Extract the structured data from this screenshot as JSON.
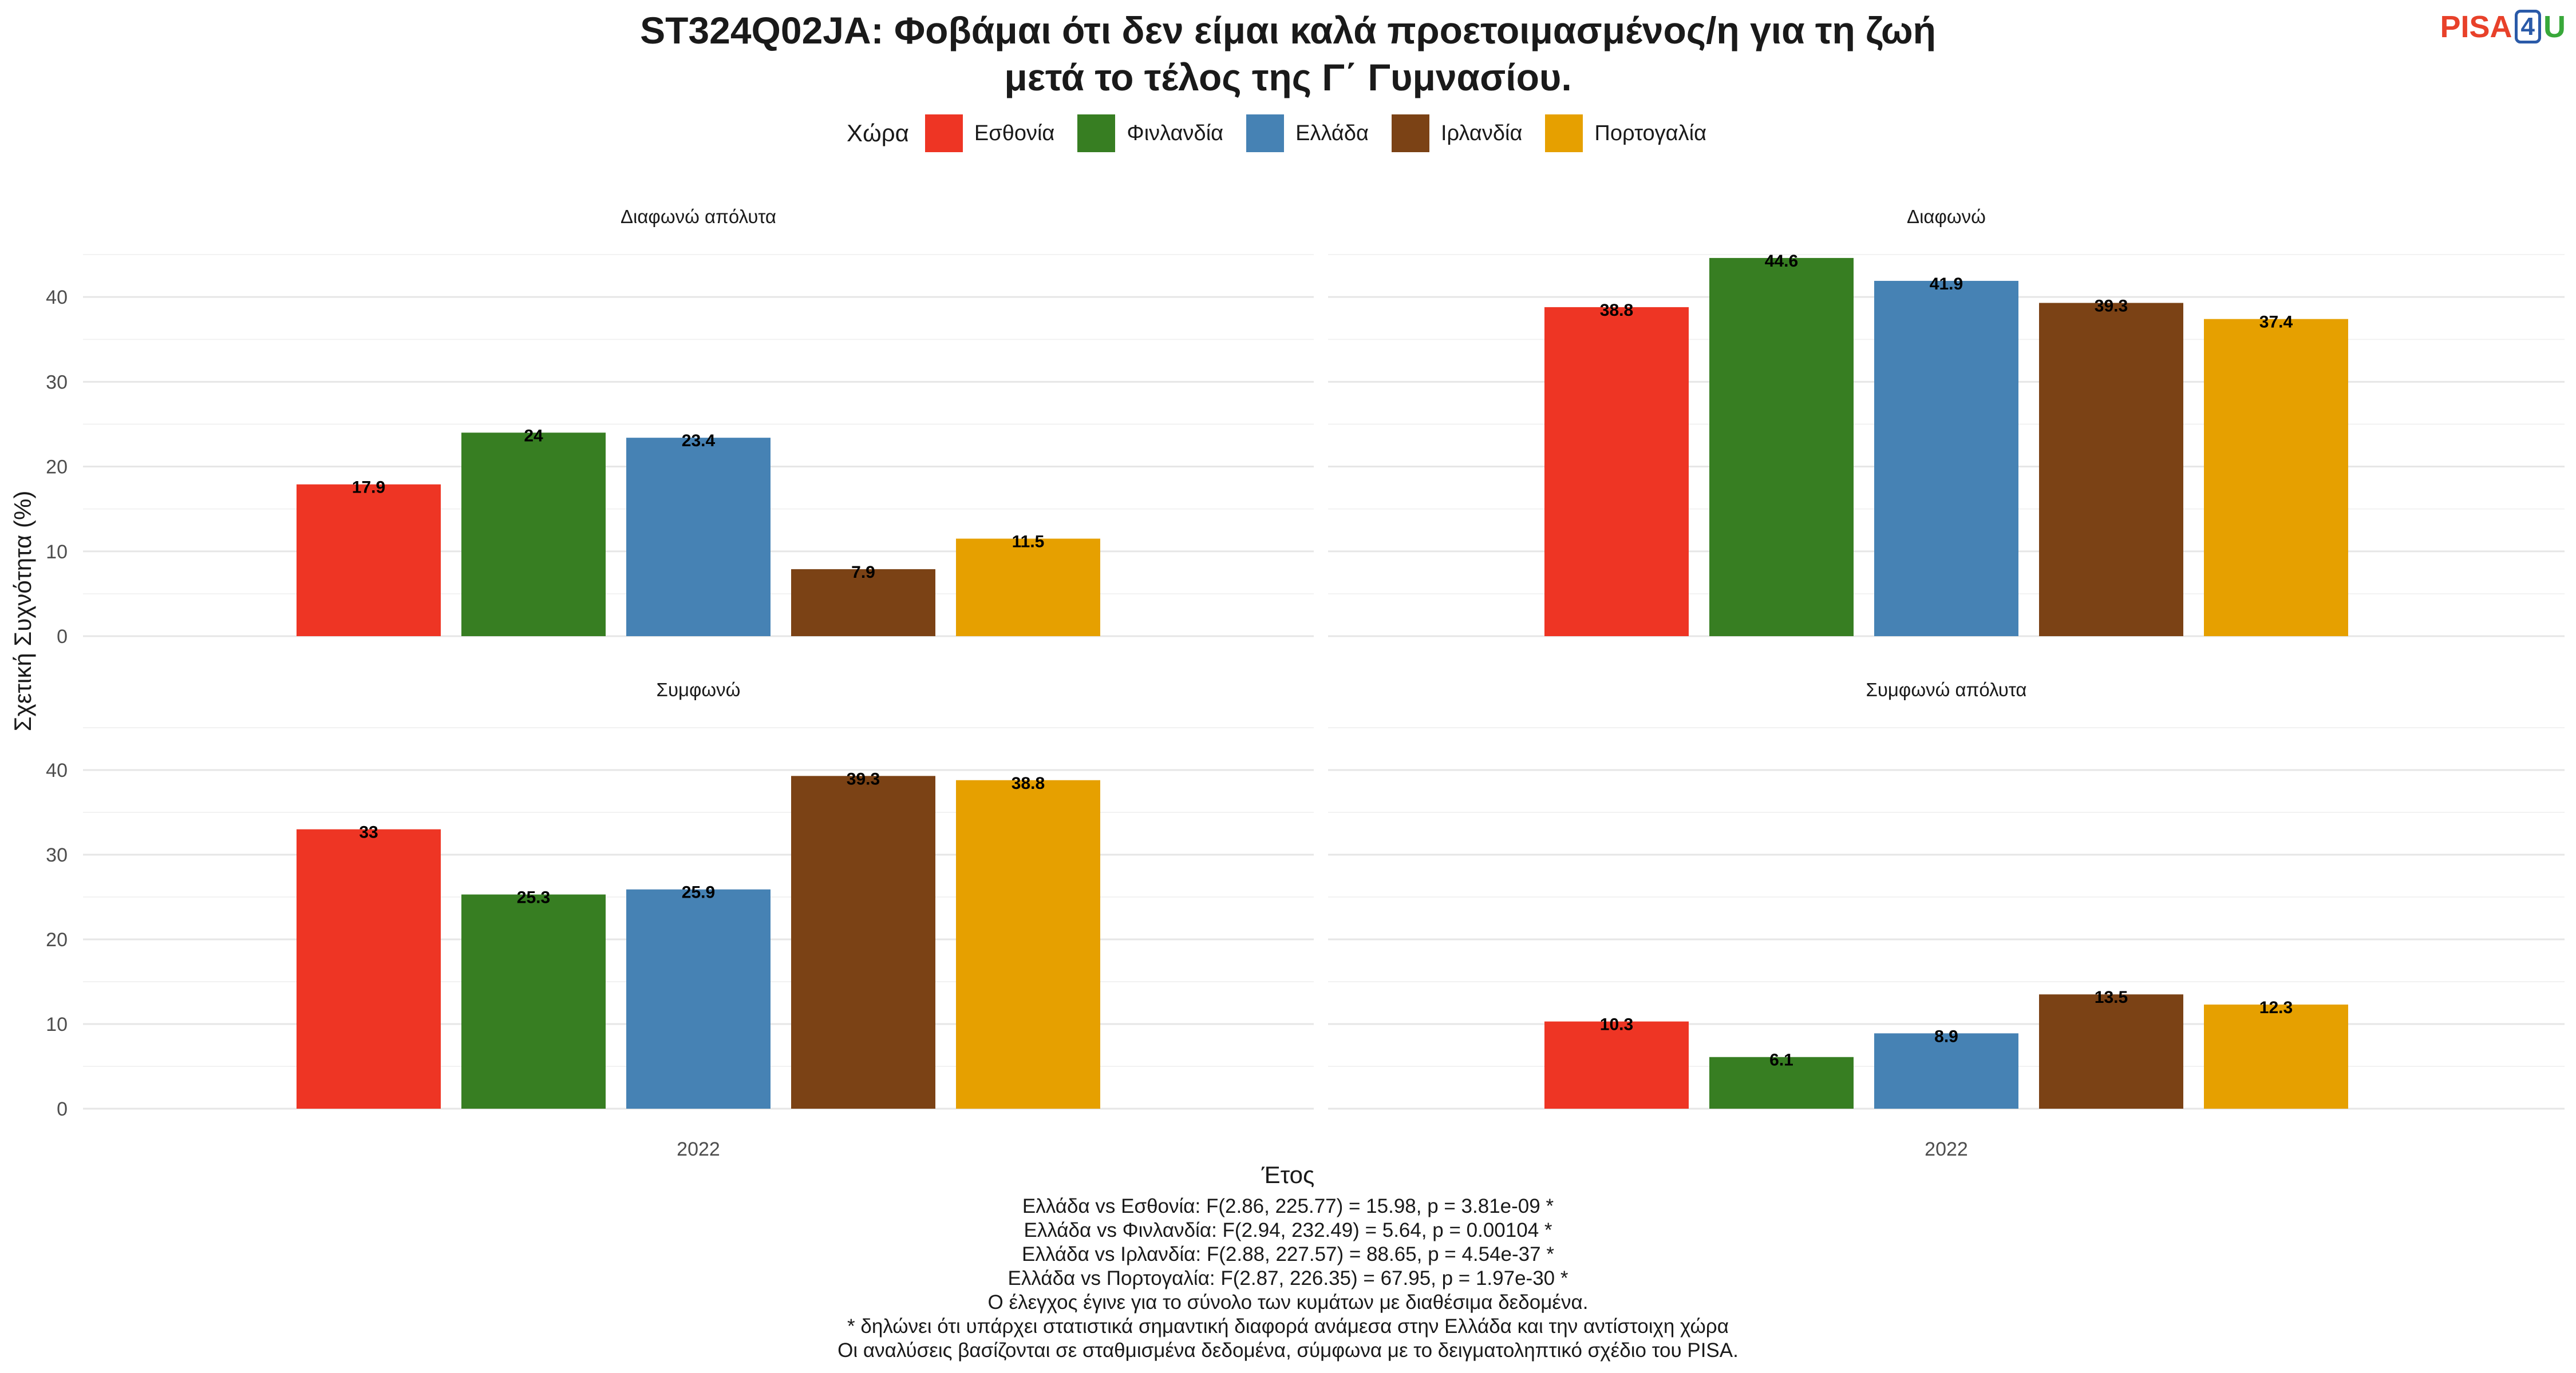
{
  "title_line1": "ST324Q02JA: Φοβάμαι ότι δεν είμαι καλά προετοιμασμένος/η για τη ζωή",
  "title_line2": "μετά το τέλος της Γ΄ Γυμνασίου.",
  "logo": {
    "p": "PISA",
    "four": "4",
    "u": "U"
  },
  "legend_title": "Χώρα",
  "colors": {
    "Εσθονία": "#ee3524",
    "Φινλανδία": "#377e22",
    "Ελλάδα": "#4682b4",
    "Ιρλανδία": "#7b4215",
    "Πορτογαλία": "#e6a000"
  },
  "chart_data": {
    "type": "bar",
    "xlabel": "Έτος",
    "ylabel": "Σχετική Συχνότητα (%)",
    "categories": [
      "2022"
    ],
    "ylim": [
      0,
      45
    ],
    "yticks": [
      0,
      10,
      20,
      30,
      40
    ],
    "grid": true,
    "legend_position": "top",
    "series_names": [
      "Εσθονία",
      "Φινλανδία",
      "Ελλάδα",
      "Ιρλανδία",
      "Πορτογαλία"
    ],
    "facets": [
      {
        "label": "Διαφωνώ απόλυτα",
        "values": [
          17.9,
          24,
          23.4,
          7.9,
          11.5
        ]
      },
      {
        "label": "Διαφωνώ",
        "values": [
          38.8,
          44.6,
          41.9,
          39.3,
          37.4
        ]
      },
      {
        "label": "Συμφωνώ",
        "values": [
          33,
          25.3,
          25.9,
          39.3,
          38.8
        ]
      },
      {
        "label": "Συμφωνώ απόλυτα",
        "values": [
          10.3,
          6.1,
          8.9,
          13.5,
          12.3
        ]
      }
    ]
  },
  "footnotes": [
    "Ελλάδα vs Εσθονία: F(2.86, 225.77) = 15.98, p = 3.81e-09 *",
    "Ελλάδα vs Φινλανδία: F(2.94, 232.49) = 5.64, p = 0.00104 *",
    "Ελλάδα vs Ιρλανδία: F(2.88, 227.57) = 88.65, p = 4.54e-37 *",
    "Ελλάδα vs Πορτογαλία: F(2.87, 226.35) = 67.95, p = 1.97e-30 *",
    "Ο έλεγχος έγινε για το σύνολο των κυμάτων με διαθέσιμα δεδομένα.",
    "* δηλώνει ότι υπάρχει στατιστικά σημαντική διαφορά ανάμεσα στην Ελλάδα και την αντίστοιχη χώρα",
    "Οι αναλύσεις βασίζονται σε σταθμισμένα δεδομένα, σύμφωνα με το δειγματοληπτικό σχέδιο του PISA."
  ]
}
